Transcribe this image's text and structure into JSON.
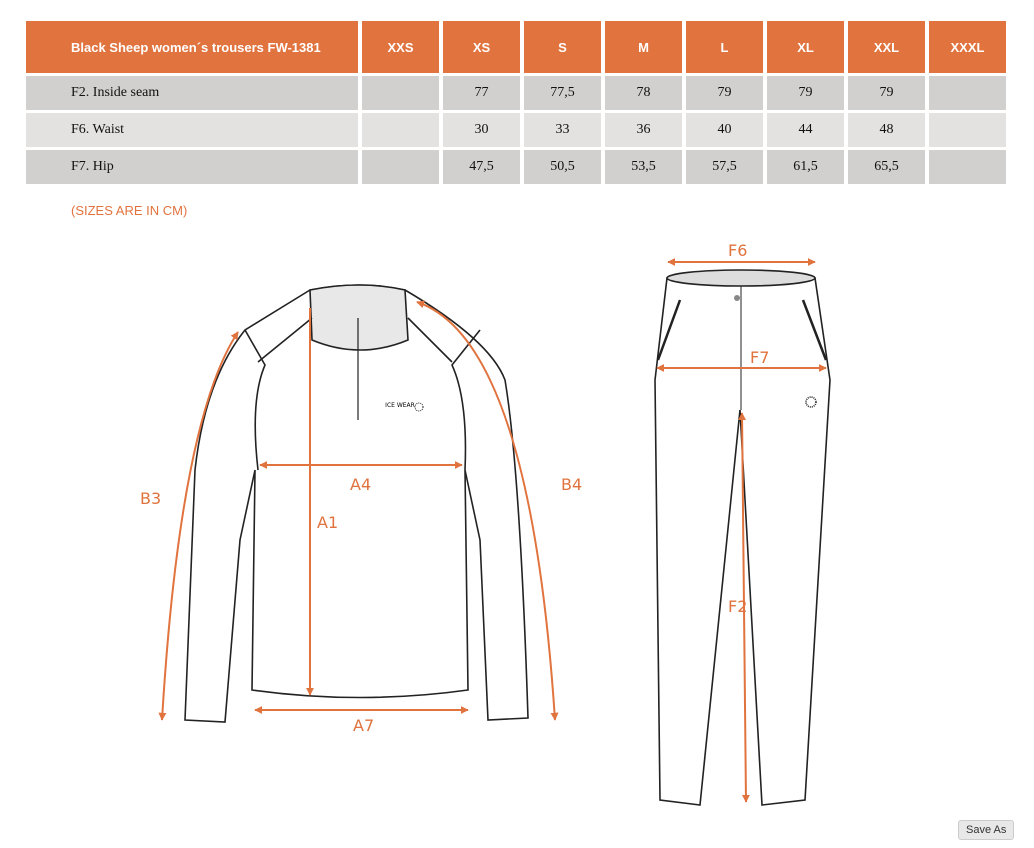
{
  "table": {
    "title": "Black Sheep women´s trousers FW-1381",
    "sizes": [
      "XXS",
      "XS",
      "S",
      "M",
      "L",
      "XL",
      "XXL",
      "XXXL"
    ],
    "rows": [
      {
        "label": "F2. Inside seam",
        "values": [
          "",
          "77",
          "77,5",
          "78",
          "79",
          "79",
          "79",
          ""
        ]
      },
      {
        "label": "F6. Waist",
        "values": [
          "",
          "30",
          "33",
          "36",
          "40",
          "44",
          "48",
          ""
        ]
      },
      {
        "label": "F7. Hip",
        "values": [
          "",
          "47,5",
          "50,5",
          "53,5",
          "57,5",
          "61,5",
          "65,5",
          ""
        ]
      }
    ]
  },
  "note": "(SIZES ARE IN CM)",
  "diagram": {
    "jacket_labels": {
      "a1": "A1",
      "a4": "A4",
      "a7": "A7",
      "b3": "B3",
      "b4": "B4"
    },
    "trousers_labels": {
      "f2": "F2",
      "f6": "F6",
      "f7": "F7"
    },
    "logo": "ICE WEAR",
    "accent_color": "#e0733e"
  },
  "save_as": "Save As"
}
